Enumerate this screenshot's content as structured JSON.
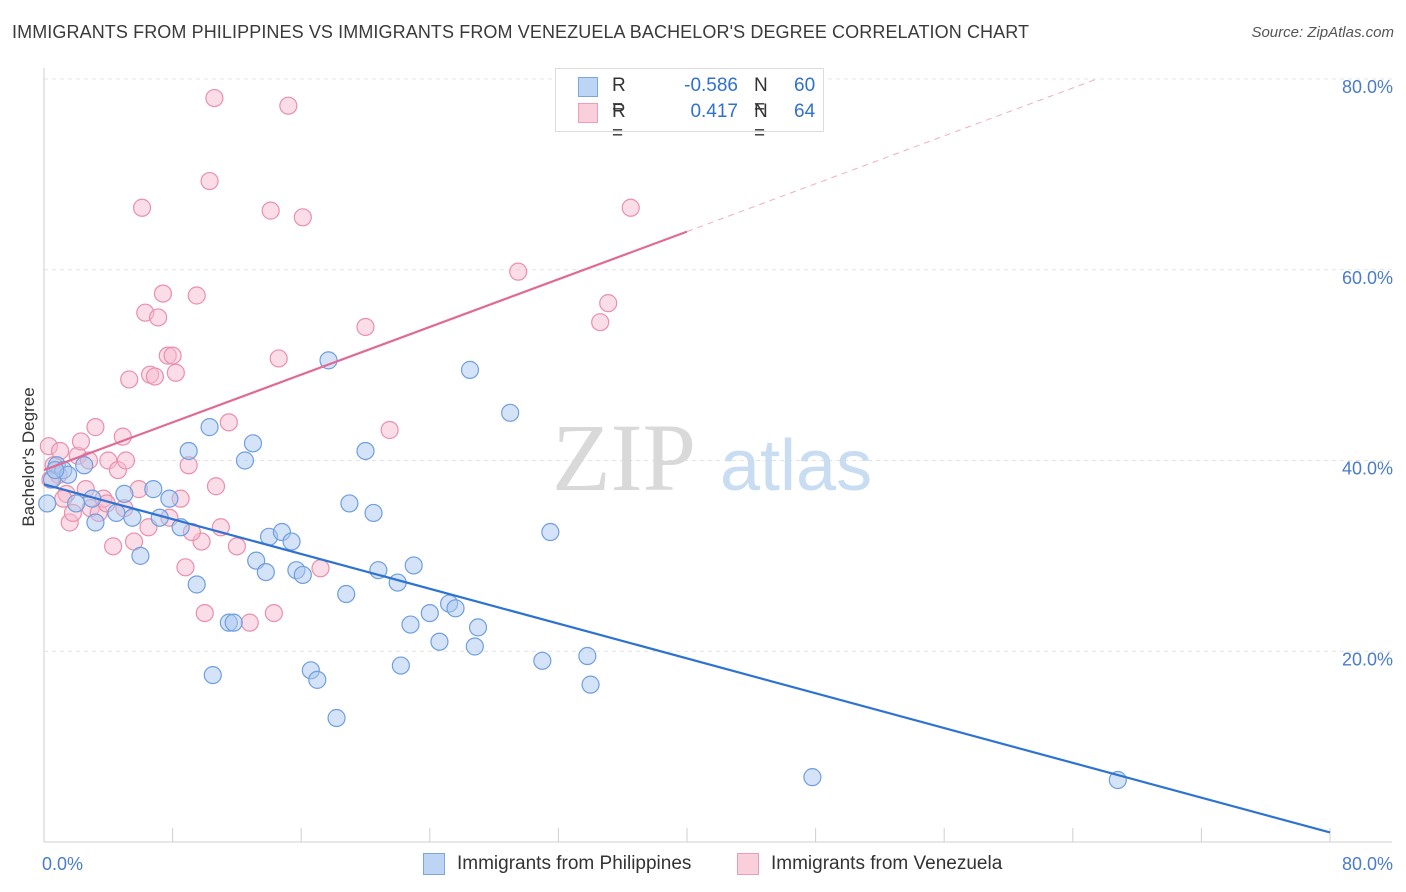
{
  "title": "IMMIGRANTS FROM PHILIPPINES VS IMMIGRANTS FROM VENEZUELA BACHELOR'S DEGREE CORRELATION CHART",
  "source": "Source: ZipAtlas.com",
  "watermark": {
    "zip": "ZIP",
    "atlas": "atlas"
  },
  "legend": {
    "rows": [
      {
        "r_label": "R =",
        "r_value": "-0.586",
        "n_label": "N =",
        "n_value": "60"
      },
      {
        "r_label": "R =",
        "r_value": "0.417",
        "n_label": "N =",
        "n_value": "64"
      }
    ]
  },
  "colors": {
    "blue_fill": "#a9c8f0",
    "blue_stroke": "#6f9fe0",
    "blue_line": "#2e72d2",
    "pink_fill": "#f6bccd",
    "pink_stroke": "#eb8fac",
    "pink_line": "#e06a94",
    "grid": "#e3e3e3",
    "axis": "#cfcfcf",
    "tick_text": "#4a7cc9"
  },
  "chart_data": {
    "type": "scatter",
    "title": "IMMIGRANTS FROM PHILIPPINES VS IMMIGRANTS FROM VENEZUELA BACHELOR'S DEGREE CORRELATION CHART",
    "xlabel": "",
    "ylabel": "Bachelor's Degree",
    "xlim": [
      0,
      80
    ],
    "ylim": [
      0,
      80
    ],
    "x_ticks": [
      {
        "value": 0,
        "label": "0.0%"
      },
      {
        "value": 80,
        "label": "80.0%"
      }
    ],
    "y_ticks": [
      {
        "value": 20,
        "label": "20.0%"
      },
      {
        "value": 40,
        "label": "40.0%"
      },
      {
        "value": 60,
        "label": "60.0%"
      },
      {
        "value": 80,
        "label": "80.0%"
      }
    ],
    "grid": true,
    "legend_position": "bottom",
    "series": [
      {
        "name": "Immigrants from Philippines",
        "color": "blue",
        "R": -0.586,
        "N": 60,
        "trend": {
          "x0": 0,
          "y0": 37.5,
          "x1": 80,
          "y1": 1.0,
          "dashed_to": null
        },
        "points": [
          [
            0.2,
            35.5
          ],
          [
            0.5,
            38
          ],
          [
            0.8,
            39.5
          ],
          [
            1.2,
            39
          ],
          [
            1.5,
            38.5
          ],
          [
            2.0,
            35.5
          ],
          [
            2.5,
            39.5
          ],
          [
            3.0,
            36
          ],
          [
            3.2,
            33.5
          ],
          [
            4.5,
            34.5
          ],
          [
            5.0,
            36.5
          ],
          [
            5.5,
            34
          ],
          [
            6.0,
            30
          ],
          [
            6.8,
            37
          ],
          [
            7.2,
            34
          ],
          [
            7.8,
            36
          ],
          [
            8.5,
            33
          ],
          [
            9.0,
            41
          ],
          [
            9.5,
            27
          ],
          [
            10.3,
            43.5
          ],
          [
            10.5,
            17.5
          ],
          [
            11.5,
            23
          ],
          [
            11.8,
            23
          ],
          [
            12.5,
            40
          ],
          [
            13.0,
            41.8
          ],
          [
            13.2,
            29.5
          ],
          [
            13.8,
            28.3
          ],
          [
            14.0,
            32
          ],
          [
            14.8,
            32.5
          ],
          [
            15.4,
            31.5
          ],
          [
            15.7,
            28.5
          ],
          [
            16.1,
            28
          ],
          [
            16.6,
            18
          ],
          [
            17.0,
            17
          ],
          [
            17.7,
            50.5
          ],
          [
            18.2,
            13
          ],
          [
            18.8,
            26
          ],
          [
            19.0,
            35.5
          ],
          [
            20.0,
            41
          ],
          [
            20.5,
            34.5
          ],
          [
            20.8,
            28.5
          ],
          [
            22.0,
            27.2
          ],
          [
            22.2,
            18.5
          ],
          [
            22.8,
            22.8
          ],
          [
            23.0,
            29
          ],
          [
            24.0,
            24
          ],
          [
            24.6,
            21
          ],
          [
            25.2,
            25
          ],
          [
            25.6,
            24.5
          ],
          [
            26.5,
            49.5
          ],
          [
            26.8,
            20.5
          ],
          [
            27.0,
            22.5
          ],
          [
            29.0,
            45
          ],
          [
            31.0,
            19
          ],
          [
            31.5,
            32.5
          ],
          [
            33.8,
            19.5
          ],
          [
            34.0,
            16.5
          ],
          [
            47.8,
            6.8
          ],
          [
            66.8,
            6.5
          ],
          [
            0.7,
            39
          ]
        ]
      },
      {
        "name": "Immigrants from Venezuela",
        "color": "pink",
        "R": 0.417,
        "N": 64,
        "trend": {
          "x0": 0,
          "y0": 39.0,
          "x1": 40,
          "y1": 64.0,
          "dashed_to": {
            "x": 65.5,
            "y": 80
          }
        },
        "points": [
          [
            0.3,
            41.5
          ],
          [
            0.6,
            39.5
          ],
          [
            0.9,
            38.5
          ],
          [
            1.0,
            41
          ],
          [
            1.4,
            36.5
          ],
          [
            1.6,
            33.5
          ],
          [
            1.8,
            34.5
          ],
          [
            2.1,
            40.5
          ],
          [
            2.3,
            42
          ],
          [
            2.6,
            37
          ],
          [
            2.9,
            35
          ],
          [
            3.2,
            43.5
          ],
          [
            3.4,
            34.5
          ],
          [
            3.7,
            36
          ],
          [
            4.0,
            40
          ],
          [
            4.3,
            31
          ],
          [
            4.6,
            39
          ],
          [
            4.9,
            42.5
          ],
          [
            5.1,
            40
          ],
          [
            5.3,
            48.5
          ],
          [
            5.6,
            31.5
          ],
          [
            5.9,
            37
          ],
          [
            6.1,
            66.5
          ],
          [
            6.3,
            55.5
          ],
          [
            6.6,
            49
          ],
          [
            6.9,
            48.8
          ],
          [
            7.1,
            55
          ],
          [
            7.4,
            57.5
          ],
          [
            7.7,
            51
          ],
          [
            8.0,
            51
          ],
          [
            8.2,
            49.2
          ],
          [
            8.5,
            36
          ],
          [
            8.8,
            28.8
          ],
          [
            9.0,
            39.5
          ],
          [
            9.5,
            57.3
          ],
          [
            9.8,
            31.5
          ],
          [
            10.0,
            24
          ],
          [
            10.3,
            69.3
          ],
          [
            10.6,
            78
          ],
          [
            10.7,
            37.3
          ],
          [
            11.0,
            33
          ],
          [
            11.5,
            44
          ],
          [
            12.8,
            23
          ],
          [
            14.1,
            66.2
          ],
          [
            14.3,
            24
          ],
          [
            14.6,
            50.7
          ],
          [
            15.2,
            77.2
          ],
          [
            16.1,
            65.5
          ],
          [
            17.2,
            28.7
          ],
          [
            20.0,
            54
          ],
          [
            21.5,
            43.2
          ],
          [
            29.5,
            59.8
          ],
          [
            34.6,
            54.5
          ],
          [
            35.1,
            56.5
          ],
          [
            36.5,
            66.5
          ],
          [
            1.2,
            36
          ],
          [
            2.8,
            40
          ],
          [
            3.9,
            35.5
          ],
          [
            6.5,
            33
          ],
          [
            0.4,
            38
          ],
          [
            5.0,
            35
          ],
          [
            7.8,
            34
          ],
          [
            9.2,
            32.5
          ],
          [
            12.0,
            31
          ]
        ]
      }
    ]
  }
}
